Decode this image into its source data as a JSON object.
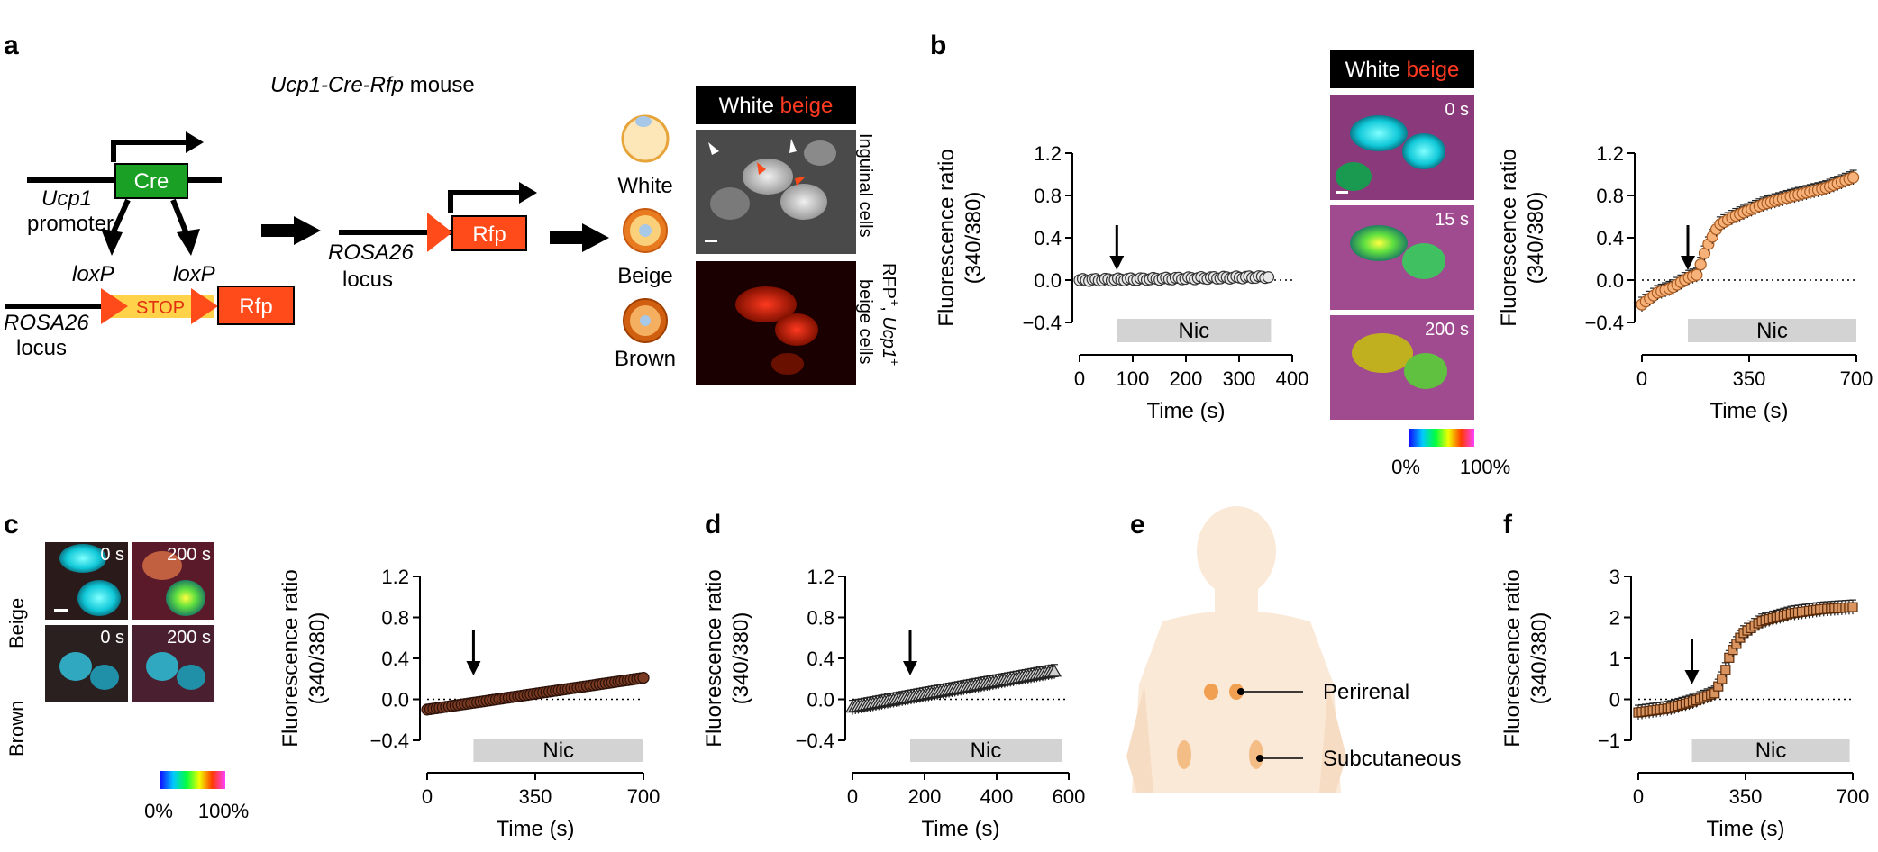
{
  "panels": {
    "a": {
      "label": "a",
      "title_italic": "Ucp1-Cre-Rfp",
      "title_rest": " mouse",
      "cre": "Cre",
      "ucp1": "Ucp1",
      "promoter": "promoter",
      "loxp1": "loxP",
      "loxp2": "loxP",
      "stop": "STOP",
      "rfp1": "Rfp",
      "rosa1": "ROSA26",
      "locus1": "locus",
      "rfp2": "Rfp",
      "rosa2": "ROSA26",
      "locus2": "locus",
      "white": "White",
      "beige": "Beige",
      "brown": "Brown",
      "hdr_white": "White ",
      "hdr_beige": "beige",
      "side1": "Inguinal cells",
      "side2a": "RFP",
      "side2b": "+",
      "side2c": ", ",
      "side2d": "Ucp1",
      "side2e": "+",
      "side3": "beige cells"
    },
    "b": {
      "label": "b",
      "hdr_white": "White ",
      "hdr_beige": "beige",
      "t0": "0 s",
      "t15": "15 s",
      "t200": "200 s",
      "cbar_min": "0%",
      "cbar_max": "100%"
    },
    "c": {
      "label": "c",
      "beige": "Beige",
      "brown": "Brown",
      "t0a": "0 s",
      "t200a": "200 s",
      "t0b": "0 s",
      "t200b": "200 s",
      "cbar_min": "0%",
      "cbar_max": "100%"
    },
    "d": {
      "label": "d"
    },
    "e": {
      "label": "e",
      "perirenal": "Perirenal",
      "subcutaneous": "Subcutaneous"
    },
    "f": {
      "label": "f"
    }
  },
  "colors": {
    "cre_green": "#1aa024",
    "rfp_red": "#ff4a1a",
    "stop_yellow": "#ffd24a",
    "beige_marker": "#f7b27a",
    "brown_marker": "#7a3b22",
    "d_marker": "#b0b0b0",
    "f_marker": "#d9935e",
    "body_skin": "#fbe9d8",
    "fat_orange": "#f0a050"
  },
  "chart_data": [
    {
      "id": "b1",
      "type": "scatter",
      "ylabel_line1": "Fluorescence ratio",
      "ylabel_line2": "(340/380)",
      "xlabel": "Time (s)",
      "xlim": [
        0,
        400
      ],
      "ylim": [
        -0.4,
        1.2
      ],
      "xticks": [
        "0",
        "100",
        "200",
        "300",
        "400"
      ],
      "yticks": [
        "−0.4",
        "0.0",
        "0.4",
        "0.8",
        "1.2"
      ],
      "bar_label": "Nic",
      "bar_range": [
        70,
        360
      ],
      "arrow_x": 70,
      "series": [
        {
          "x_start": 0,
          "x_end": 355,
          "y_start": 0.0,
          "y_end": 0.03,
          "n": 60
        }
      ]
    },
    {
      "id": "b2",
      "type": "scatter",
      "ylabel_line1": "Fluorescence ratio",
      "ylabel_line2": "(340/380)",
      "xlabel": "Time (s)",
      "xlim": [
        0,
        700
      ],
      "ylim": [
        -0.4,
        1.2
      ],
      "xticks": [
        "0",
        "350",
        "700"
      ],
      "yticks": [
        "−0.4",
        "0.0",
        "0.4",
        "0.8",
        "1.2"
      ],
      "bar_label": "Nic",
      "bar_range": [
        150,
        700
      ],
      "arrow_x": 150,
      "series": [
        {
          "points": [
            [
              0,
              -0.23
            ],
            [
              50,
              -0.12
            ],
            [
              100,
              -0.07
            ],
            [
              150,
              0.02
            ],
            [
              180,
              0.05
            ],
            [
              210,
              0.3
            ],
            [
              250,
              0.52
            ],
            [
              300,
              0.6
            ],
            [
              400,
              0.72
            ],
            [
              500,
              0.8
            ],
            [
              600,
              0.87
            ],
            [
              690,
              0.97
            ]
          ]
        }
      ]
    },
    {
      "id": "c",
      "type": "scatter",
      "ylabel_line1": "Fluorescence ratio",
      "ylabel_line2": "(340/380)",
      "xlabel": "Time (s)",
      "xlim": [
        0,
        700
      ],
      "ylim": [
        -0.4,
        1.2
      ],
      "xticks": [
        "0",
        "350",
        "700"
      ],
      "yticks": [
        "−0.4",
        "0.0",
        "0.4",
        "0.8",
        "1.2"
      ],
      "bar_label": "Nic",
      "bar_range": [
        150,
        700
      ],
      "arrow_x": 150,
      "series": [
        {
          "points": [
            [
              0,
              -0.1
            ],
            [
              700,
              0.21
            ]
          ]
        }
      ]
    },
    {
      "id": "d",
      "type": "scatter",
      "ylabel_line1": "Fluorescence ratio",
      "ylabel_line2": "(340/380)",
      "xlabel": "Time (s)",
      "xlim": [
        0,
        600
      ],
      "ylim": [
        -0.4,
        1.2
      ],
      "xticks": [
        "0",
        "200",
        "400",
        "600"
      ],
      "yticks": [
        "−0.4",
        "0.0",
        "0.4",
        "0.8",
        "1.2"
      ],
      "bar_label": "Nic",
      "bar_range": [
        160,
        580
      ],
      "arrow_x": 160,
      "series": [
        {
          "points": [
            [
              0,
              -0.08
            ],
            [
              560,
              0.27
            ]
          ]
        }
      ]
    },
    {
      "id": "f",
      "type": "scatter",
      "ylabel_line1": "Fluorescence ratio",
      "ylabel_line2": "(340/380)",
      "xlabel": "Time (s)",
      "xlim": [
        0,
        700
      ],
      "ylim": [
        -1,
        3
      ],
      "xticks": [
        "0",
        "350",
        "700"
      ],
      "yticks": [
        "−1",
        "0",
        "1",
        "2",
        "3"
      ],
      "bar_label": "Nic",
      "bar_range": [
        175,
        690
      ],
      "arrow_x": 175,
      "series": [
        {
          "points": [
            [
              0,
              -0.32
            ],
            [
              100,
              -0.22
            ],
            [
              180,
              -0.05
            ],
            [
              250,
              0.15
            ],
            [
              280,
              0.6
            ],
            [
              300,
              1.1
            ],
            [
              340,
              1.6
            ],
            [
              400,
              1.9
            ],
            [
              500,
              2.1
            ],
            [
              600,
              2.2
            ],
            [
              700,
              2.25
            ]
          ]
        }
      ]
    }
  ]
}
